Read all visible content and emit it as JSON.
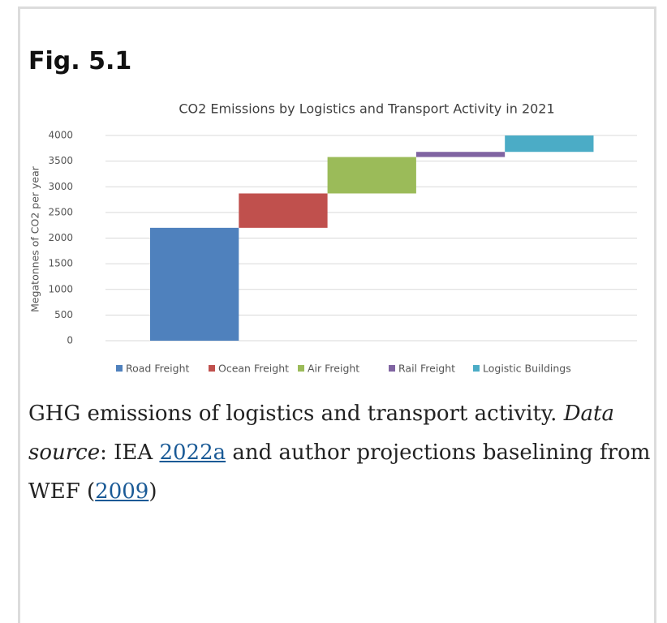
{
  "figure_label": "Fig. 5.1",
  "chart_data": {
    "type": "waterfall",
    "title": "CO2 Emissions by Logistics and Transport Activity in 2021",
    "y_label": "Megatonnes of CO2 per year",
    "series": [
      {
        "name": "Road Freight",
        "color": "#4f81bd",
        "values": [
          2200
        ]
      },
      {
        "name": "Ocean Freight",
        "color": "#c0504d",
        "values": [
          670
        ]
      },
      {
        "name": "Air Freight",
        "color": "#9bbb59",
        "values": [
          710
        ]
      },
      {
        "name": "Rail Freight",
        "color": "#8064a2",
        "values": [
          100
        ]
      },
      {
        "name": "Logistic Buildings",
        "color": "#4bacc6",
        "values": [
          320
        ]
      }
    ],
    "ylim": [
      0,
      4000
    ],
    "yticks": [
      0,
      500,
      1000,
      1500,
      2000,
      2500,
      3000,
      3500,
      4000
    ],
    "grid": true,
    "legend": "bottom"
  },
  "caption": {
    "text1": "GHG emissions of logistics and transport activity. ",
    "italic": "Data source",
    "text2": ": IEA ",
    "link1": "2022a",
    "text3": " and author projections baselining from WEF (",
    "link2": "2009",
    "text4": ")"
  }
}
